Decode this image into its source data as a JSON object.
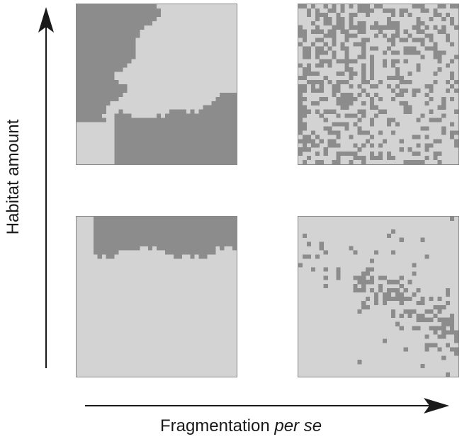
{
  "figure": {
    "y_axis_label": "Habitat amount",
    "x_axis_label_main": "Fragmentation ",
    "x_axis_label_italic": "per se"
  },
  "colors": {
    "habitat": "#8c8c8c",
    "matrix": "#d3d3d3",
    "axis": "#1a1a1a",
    "frame": "#888888"
  },
  "panels": [
    {
      "name": "high-amount-low-fragmentation",
      "habitat_amount": "high",
      "fragmentation": "low",
      "habitat_fraction": 0.5
    },
    {
      "name": "high-amount-high-fragmentation",
      "habitat_amount": "high",
      "fragmentation": "high",
      "habitat_fraction": 0.5
    },
    {
      "name": "low-amount-low-fragmentation",
      "habitat_amount": "low",
      "fragmentation": "low",
      "habitat_fraction": 0.2
    },
    {
      "name": "low-amount-high-fragmentation",
      "habitat_amount": "low",
      "fragmentation": "high",
      "habitat_fraction": 0.2
    }
  ]
}
